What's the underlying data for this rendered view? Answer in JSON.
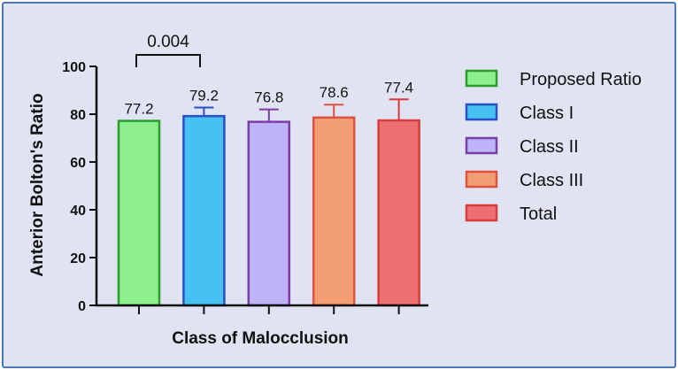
{
  "chart_data": {
    "type": "bar",
    "title": "",
    "xlabel": "Class of Malocclusion",
    "ylabel": "Anterior Bolton's Ratio",
    "ylim": [
      0,
      100
    ],
    "yticks": [
      0,
      20,
      40,
      60,
      80,
      100
    ],
    "grid": false,
    "legend_position": "right",
    "series": [
      {
        "name": "Proposed Ratio",
        "value": 77.2,
        "label": "77.2",
        "error": 0,
        "fill": "#8ef08c",
        "stroke": "#2e9b2e"
      },
      {
        "name": "Class I",
        "value": 79.2,
        "label": "79.2",
        "error": 3.6,
        "fill": "#46c1f2",
        "stroke": "#2b4fc7"
      },
      {
        "name": "Class II",
        "value": 76.8,
        "label": "76.8",
        "error": 5.2,
        "fill": "#bdb3f6",
        "stroke": "#7a3fa5"
      },
      {
        "name": "Class III",
        "value": 78.6,
        "label": "78.6",
        "error": 5.4,
        "fill": "#f29e74",
        "stroke": "#e0523e"
      },
      {
        "name": "Total",
        "value": 77.4,
        "label": "77.4",
        "error": 8.8,
        "fill": "#ec6f72",
        "stroke": "#d83b3b"
      }
    ],
    "annotations": [
      {
        "type": "significance_bracket",
        "from": "Proposed Ratio",
        "to": "Class I",
        "text": "0.004"
      }
    ]
  }
}
